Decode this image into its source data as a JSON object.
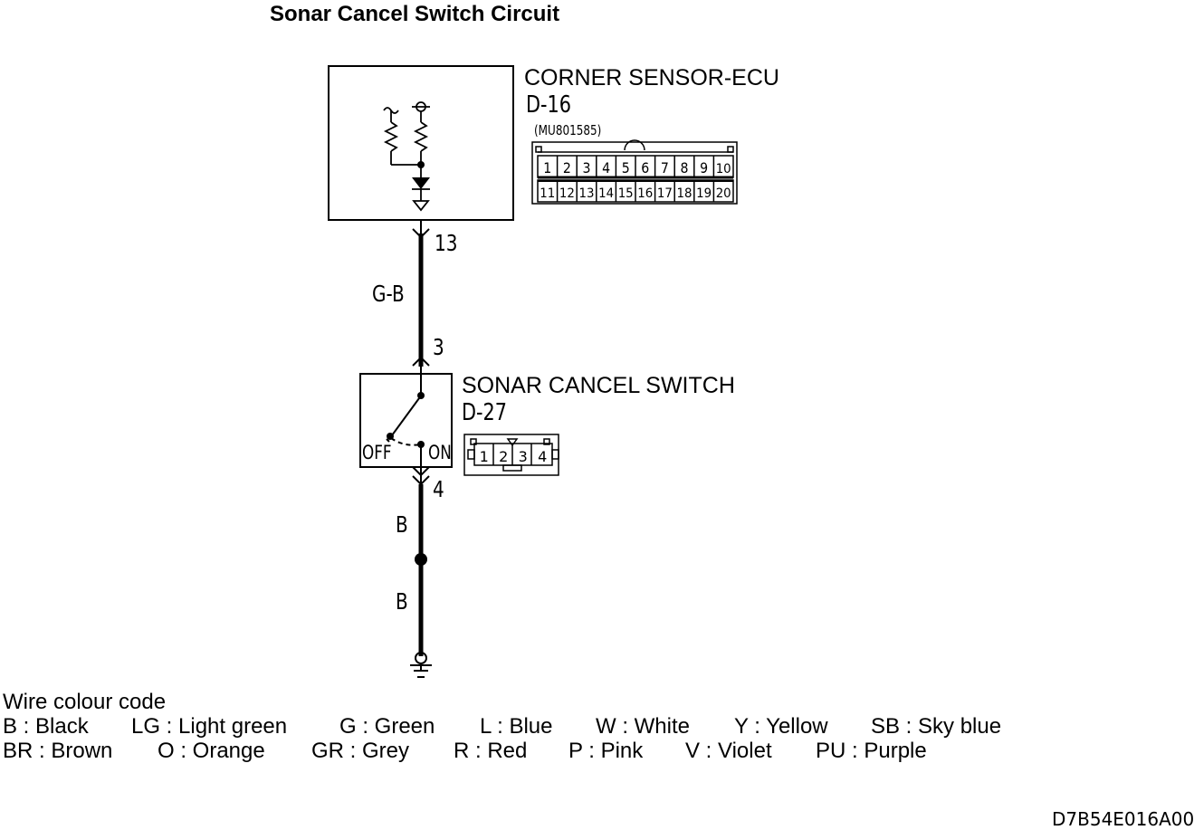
{
  "title": "Sonar Cancel Switch Circuit",
  "ecu": {
    "name": "CORNER SENSOR-ECU",
    "connector": "D-16",
    "part_number": "(MU801585)",
    "pins_top": [
      "1",
      "2",
      "3",
      "4",
      "5",
      "6",
      "7",
      "8",
      "9",
      "10"
    ],
    "pins_bottom": [
      "11",
      "12",
      "13",
      "14",
      "15",
      "16",
      "17",
      "18",
      "19",
      "20"
    ]
  },
  "wires": {
    "ecu_pin": "13",
    "color_upper": "G-B",
    "switch_pin_top": "3",
    "switch_pin_bottom": "4",
    "color_lower_1": "B",
    "color_lower_2": "B"
  },
  "switch": {
    "name": "SONAR CANCEL SWITCH",
    "connector": "D-27",
    "off_label": "OFF",
    "on_label": "ON",
    "pins": [
      "1",
      "2",
      "3",
      "4"
    ]
  },
  "legend": {
    "title": "Wire colour code",
    "row1": [
      "B : Black",
      "LG : Light green",
      "G : Green",
      "L : Blue",
      "W : White",
      "Y : Yellow",
      "SB : Sky blue"
    ],
    "row2": [
      "BR : Brown",
      "O : Orange",
      "GR : Grey",
      "R : Red",
      "P : Pink",
      "V : Violet",
      "PU : Purple"
    ]
  },
  "figure_code": "D7B54E016A00"
}
